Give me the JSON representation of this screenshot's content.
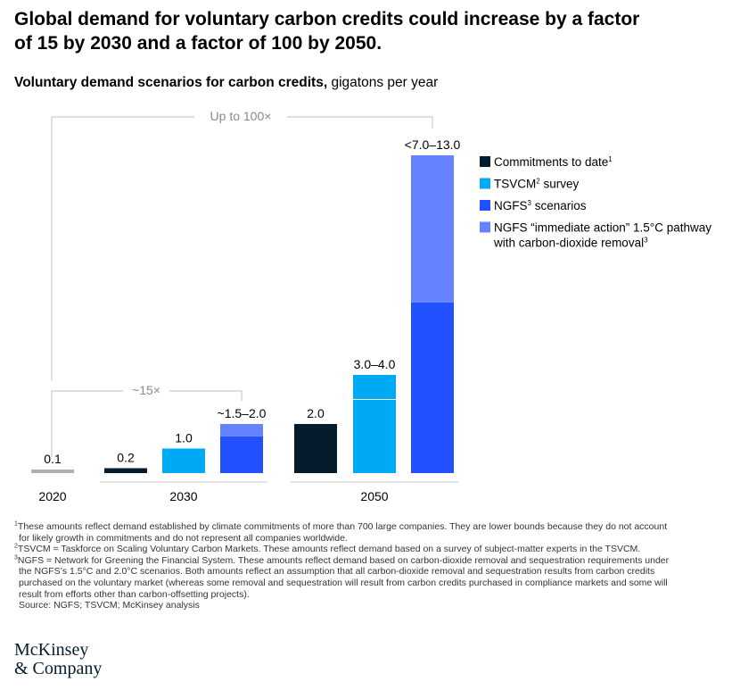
{
  "headline": [
    "Global demand for voluntary carbon credits could increase by a factor",
    "of 15 by 2030 and a factor of 100 by 2050."
  ],
  "subtitle": {
    "bold": "Voluntary demand scenarios for carbon credits,",
    "unit": " gigatons per year"
  },
  "colors": {
    "commitments": "#051c2c",
    "tsvcm": "#00a9f4",
    "ngfs": "#2251ff",
    "ngfs_immediate": "#6583ff",
    "baseline": "#b0b0b0",
    "bracket": "#cccccc",
    "bracket_text": "#8a8a8a"
  },
  "chart_data": {
    "type": "bar",
    "unit": "gigatons per year",
    "groups": [
      "2020",
      "2030",
      "2050"
    ],
    "legend": [
      {
        "key": "commitments",
        "label": "Commitments to date",
        "sup": "1"
      },
      {
        "key": "tsvcm",
        "label": "TSVCM",
        "sup": "2",
        "label_after": " survey"
      },
      {
        "key": "ngfs",
        "label": "NGFS",
        "sup": "3",
        "label_after": " scenarios"
      },
      {
        "key": "ngfs_immediate",
        "label": "NGFS “immediate action” 1.5°C pathway",
        "label_line2": "with carbon-dioxide removal",
        "sup2": "3"
      }
    ],
    "bars": [
      {
        "group": "2020",
        "series": "baseline",
        "value": 0.1,
        "label": "0.1"
      },
      {
        "group": "2030",
        "series": "commitments",
        "value": 0.2,
        "label": "0.2"
      },
      {
        "group": "2030",
        "series": "tsvcm",
        "value": 1.0,
        "label": "1.0"
      },
      {
        "group": "2030",
        "series": "ngfs",
        "range": [
          1.5,
          2.0
        ],
        "label": "~1.5–2.0"
      },
      {
        "group": "2050",
        "series": "commitments",
        "value": 2.0,
        "label": "2.0"
      },
      {
        "group": "2050",
        "series": "tsvcm",
        "range": [
          3.0,
          4.0
        ],
        "label": "3.0–4.0"
      },
      {
        "group": "2050",
        "series": "ngfs",
        "range": [
          7.0,
          13.0
        ],
        "label": "<7.0–13.0"
      }
    ],
    "annotations": [
      {
        "label": "~15×",
        "from_group": "2020",
        "to_group": "2030"
      },
      {
        "label": "Up to 100×",
        "from_group": "2020",
        "to_group": "2050"
      }
    ]
  },
  "footnotes": [
    {
      "num": "1",
      "lines": [
        "These amounts reflect demand established by climate commitments of more than 700 large companies. They are lower bounds because they do not account",
        "for likely growth in commitments and do not represent all companies worldwide."
      ]
    },
    {
      "num": "2",
      "lines": [
        "TSVCM = Taskforce on Scaling Voluntary Carbon Markets. These amounts reflect demand based on a survey of subject-matter experts in the TSVCM."
      ]
    },
    {
      "num": "3",
      "lines": [
        "NGFS = Network for Greening the Financial System. These amounts reflect demand based on carbon-dioxide removal and sequestration requirements under",
        "the NGFS’s 1.5°C and 2.0°C scenarios. Both amounts reflect an assumption that all carbon-dioxide removal and sequestration results from carbon credits",
        "purchased on the voluntary market (whereas some removal and sequestration will result from carbon credits purchased in compliance markets and some will",
        "result from efforts other than carbon-offsetting projects)."
      ]
    }
  ],
  "source": "Source: NGFS; TSVCM; McKinsey analysis",
  "logo": [
    "McKinsey",
    "& Company"
  ]
}
